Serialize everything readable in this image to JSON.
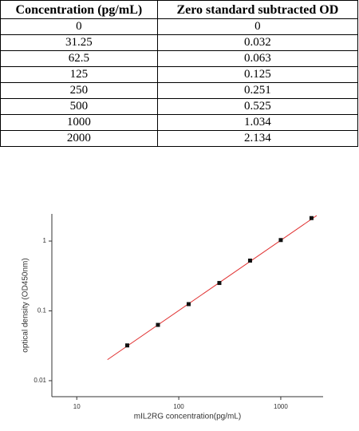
{
  "table": {
    "header": [
      "Concentration (pg/mL)",
      "Zero standard subtracted OD"
    ],
    "rows": [
      [
        "0",
        "0"
      ],
      [
        "31.25",
        "0.032"
      ],
      [
        "62.5",
        "0.063"
      ],
      [
        "125",
        "0.125"
      ],
      [
        "250",
        "0.251"
      ],
      [
        "500",
        "0.525"
      ],
      [
        "1000",
        "1.034"
      ],
      [
        "2000",
        "2.134"
      ]
    ]
  },
  "chart_data": {
    "type": "scatter",
    "x_label": "mIL2RG  concentration(pg/mL)",
    "y_label": "optical density (OD450nm)",
    "x": [
      31.25,
      62.5,
      125,
      250,
      500,
      1000,
      2000
    ],
    "values": [
      0.032,
      0.063,
      0.125,
      0.251,
      0.525,
      1.034,
      2.134
    ],
    "color": "#111111",
    "fit": {
      "x": [
        20,
        2250
      ],
      "values": [
        0.02,
        2.32
      ],
      "color": "#e03030"
    },
    "xlog": true,
    "ylog": true,
    "xlim": [
      5.7,
      2600
    ],
    "ylim": [
      0.0059,
      2.45
    ],
    "xticks": [
      10,
      100,
      1000
    ],
    "yticks": [
      0.01,
      0.1,
      1
    ]
  }
}
